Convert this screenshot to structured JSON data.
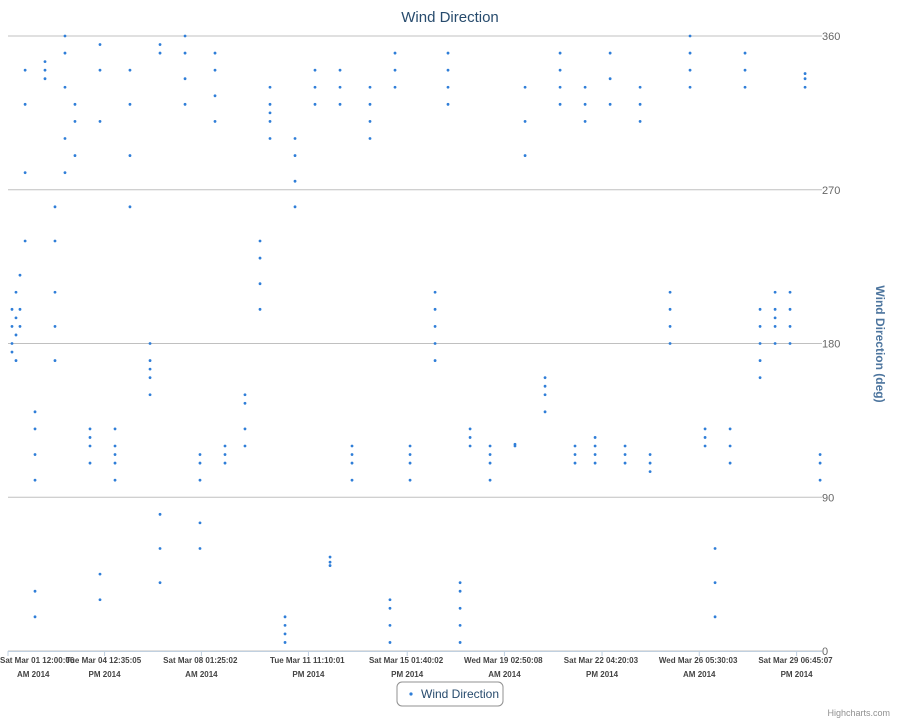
{
  "chart_data": {
    "type": "scatter",
    "title": "Wind Direction",
    "y_axis_title": "Wind Direction (deg)",
    "credit": "Highcharts.com",
    "grid": true,
    "legend": "bottom",
    "xlim": [
      "2014-03-01T00:00:06",
      "2014-03-30T17:00:00"
    ],
    "xticks": [
      {
        "value": "2014-03-01T00:00:06",
        "label": "Sat Mar 01 12:00:06 AM 2014"
      },
      {
        "value": "2014-03-04T12:35:05",
        "label": "Tue Mar 04 12:35:05 PM 2014"
      },
      {
        "value": "2014-03-08T01:25:02",
        "label": "Sat Mar 08 01:25:02 AM 2014"
      },
      {
        "value": "2014-03-11T23:10:01",
        "label": "Tue Mar 11 11:10:01 PM 2014"
      },
      {
        "value": "2014-03-15T13:40:02",
        "label": "Sat Mar 15 01:40:02 PM 2014"
      },
      {
        "value": "2014-03-19T02:50:08",
        "label": "Wed Mar 19 02:50:08 AM 2014"
      },
      {
        "value": "2014-03-22T16:20:03",
        "label": "Sat Mar 22 04:20:03 PM 2014"
      },
      {
        "value": "2014-03-26T05:30:03",
        "label": "Wed Mar 26 05:30:03 AM 2014"
      },
      {
        "value": "2014-03-29T18:45:07",
        "label": "Sat Mar 29 06:45:07 PM 2014"
      }
    ],
    "ylim": [
      0,
      360
    ],
    "yticks": [
      0,
      90,
      180,
      270,
      360
    ],
    "series": [
      {
        "name": "Wind Direction",
        "color": "#2f7ed8",
        "x": [
          "2014-03-01T03:30",
          "2014-03-01T03:30",
          "2014-03-01T03:30",
          "2014-03-01T03:30",
          "2014-03-01T07:00",
          "2014-03-01T07:00",
          "2014-03-01T07:00",
          "2014-03-01T07:00",
          "2014-03-01T10:30",
          "2014-03-01T10:30",
          "2014-03-01T10:30",
          "2014-03-01T15:00",
          "2014-03-01T15:00",
          "2014-03-01T15:00",
          "2014-03-01T15:00",
          "2014-03-01T23:40",
          "2014-03-01T23:40",
          "2014-03-01T23:40",
          "2014-03-01T23:40",
          "2014-03-01T23:40",
          "2014-03-01T23:40",
          "2014-03-02T08:25",
          "2014-03-02T08:25",
          "2014-03-02T08:25",
          "2014-03-02T17:10",
          "2014-03-02T17:10",
          "2014-03-02T17:10",
          "2014-03-02T17:10",
          "2014-03-02T17:10",
          "2014-03-03T01:55",
          "2014-03-03T01:55",
          "2014-03-03T01:55",
          "2014-03-03T01:55",
          "2014-03-03T01:55",
          "2014-03-03T10:40",
          "2014-03-03T10:40",
          "2014-03-03T10:40",
          "2014-03-03T23:50",
          "2014-03-03T23:50",
          "2014-03-03T23:50",
          "2014-03-03T23:50",
          "2014-03-04T08:35",
          "2014-03-04T08:35",
          "2014-03-04T08:35",
          "2014-03-04T08:35",
          "2014-03-04T08:35",
          "2014-03-04T21:45",
          "2014-03-04T21:45",
          "2014-03-04T21:45",
          "2014-03-04T21:45",
          "2014-03-04T21:45",
          "2014-03-05T10:50",
          "2014-03-05T10:50",
          "2014-03-05T10:50",
          "2014-03-05T10:50",
          "2014-03-06T04:25",
          "2014-03-06T04:25",
          "2014-03-06T04:25",
          "2014-03-06T04:25",
          "2014-03-06T04:25",
          "2014-03-06T13:10",
          "2014-03-06T13:10",
          "2014-03-06T13:10",
          "2014-03-06T13:10",
          "2014-03-06T13:10",
          "2014-03-07T11:05",
          "2014-03-07T11:05",
          "2014-03-07T11:05",
          "2014-03-07T11:05",
          "2014-03-08T00:10",
          "2014-03-08T00:10",
          "2014-03-08T00:10",
          "2014-03-08T00:10",
          "2014-03-08T00:10",
          "2014-03-08T13:20",
          "2014-03-08T13:20",
          "2014-03-08T13:20",
          "2014-03-08T13:20",
          "2014-03-08T22:05",
          "2014-03-08T22:05",
          "2014-03-08T22:05",
          "2014-03-09T15:35",
          "2014-03-09T15:35",
          "2014-03-09T15:35",
          "2014-03-09T15:35",
          "2014-03-10T04:45",
          "2014-03-10T04:45",
          "2014-03-10T04:45",
          "2014-03-10T04:45",
          "2014-03-10T13:30",
          "2014-03-10T13:30",
          "2014-03-10T13:30",
          "2014-03-10T13:30",
          "2014-03-10T13:30",
          "2014-03-11T02:40",
          "2014-03-11T02:40",
          "2014-03-11T02:40",
          "2014-03-11T02:40",
          "2014-03-11T11:25",
          "2014-03-11T11:25",
          "2014-03-11T11:25",
          "2014-03-11T11:25",
          "2014-03-12T04:55",
          "2014-03-12T04:55",
          "2014-03-12T04:55",
          "2014-03-12T18:05",
          "2014-03-12T18:05",
          "2014-03-12T18:05",
          "2014-03-13T02:50",
          "2014-03-13T02:50",
          "2014-03-13T02:50",
          "2014-03-13T13:20",
          "2014-03-13T13:20",
          "2014-03-13T13:20",
          "2014-03-13T13:20",
          "2014-03-14T05:05",
          "2014-03-14T05:05",
          "2014-03-14T05:05",
          "2014-03-14T05:05",
          "2014-03-14T22:35",
          "2014-03-14T22:35",
          "2014-03-14T22:35",
          "2014-03-14T22:35",
          "2014-03-15T03:00",
          "2014-03-15T03:00",
          "2014-03-15T03:00",
          "2014-03-15T16:10",
          "2014-03-15T16:10",
          "2014-03-15T16:10",
          "2014-03-15T16:10",
          "2014-03-16T14:05",
          "2014-03-16T14:05",
          "2014-03-16T14:05",
          "2014-03-16T14:05",
          "2014-03-16T14:05",
          "2014-03-17T01:25",
          "2014-03-17T01:25",
          "2014-03-17T01:25",
          "2014-03-17T01:25",
          "2014-03-17T12:00",
          "2014-03-17T12:00",
          "2014-03-17T12:00",
          "2014-03-17T12:00",
          "2014-03-17T12:00",
          "2014-03-17T20:45",
          "2014-03-17T20:45",
          "2014-03-17T20:45",
          "2014-03-18T14:15",
          "2014-03-18T14:15",
          "2014-03-18T14:15",
          "2014-03-18T14:15",
          "2014-03-19T12:05",
          "2014-03-19T12:05",
          "2014-03-19T20:55",
          "2014-03-19T20:55",
          "2014-03-19T20:55",
          "2014-03-20T14:25",
          "2014-03-20T14:25",
          "2014-03-20T14:25",
          "2014-03-20T14:25",
          "2014-03-21T03:35",
          "2014-03-21T03:35",
          "2014-03-21T03:35",
          "2014-03-21T03:35",
          "2014-03-21T16:40",
          "2014-03-21T16:40",
          "2014-03-21T16:40",
          "2014-03-22T01:30",
          "2014-03-22T01:30",
          "2014-03-22T01:30",
          "2014-03-22T10:15",
          "2014-03-22T10:15",
          "2014-03-22T10:15",
          "2014-03-22T10:15",
          "2014-03-22T23:25",
          "2014-03-22T23:25",
          "2014-03-22T23:25",
          "2014-03-23T12:30",
          "2014-03-23T12:30",
          "2014-03-23T12:30",
          "2014-03-24T01:40",
          "2014-03-24T01:40",
          "2014-03-24T01:40",
          "2014-03-24T10:25",
          "2014-03-24T10:25",
          "2014-03-24T10:25",
          "2014-03-25T03:55",
          "2014-03-25T03:55",
          "2014-03-25T03:55",
          "2014-03-25T03:55",
          "2014-03-25T21:25",
          "2014-03-25T21:25",
          "2014-03-25T21:25",
          "2014-03-25T21:25",
          "2014-03-26T10:35",
          "2014-03-26T10:35",
          "2014-03-26T10:35",
          "2014-03-26T19:20",
          "2014-03-26T19:20",
          "2014-03-26T19:20",
          "2014-03-27T08:30",
          "2014-03-27T08:30",
          "2014-03-27T08:30",
          "2014-03-27T21:35",
          "2014-03-27T21:35",
          "2014-03-27T21:35",
          "2014-03-28T10:45",
          "2014-03-28T10:45",
          "2014-03-28T10:45",
          "2014-03-28T10:45",
          "2014-03-28T10:45",
          "2014-03-28T23:55",
          "2014-03-28T23:55",
          "2014-03-28T23:55",
          "2014-03-28T23:55",
          "2014-03-28T23:55",
          "2014-03-29T13:00",
          "2014-03-29T13:00",
          "2014-03-29T13:00",
          "2014-03-29T13:00",
          "2014-03-30T02:10",
          "2014-03-30T02:10",
          "2014-03-30T02:10",
          "2014-03-30T15:20",
          "2014-03-30T15:20",
          "2014-03-30T15:20"
        ],
        "values": [
          180,
          190,
          200,
          175,
          185,
          195,
          210,
          170,
          200,
          220,
          190,
          240,
          280,
          320,
          340,
          100,
          115,
          130,
          140,
          20,
          35,
          335,
          340,
          345,
          190,
          210,
          240,
          260,
          170,
          280,
          300,
          330,
          350,
          360,
          290,
          310,
          320,
          110,
          120,
          125,
          130,
          310,
          340,
          355,
          30,
          45,
          100,
          110,
          115,
          120,
          130,
          260,
          290,
          320,
          340,
          150,
          160,
          165,
          170,
          180,
          40,
          60,
          80,
          350,
          355,
          320,
          335,
          350,
          360,
          100,
          110,
          115,
          60,
          75,
          310,
          325,
          340,
          350,
          110,
          115,
          120,
          120,
          130,
          145,
          150,
          200,
          215,
          230,
          240,
          300,
          310,
          320,
          330,
          315,
          5,
          10,
          15,
          20,
          260,
          275,
          290,
          300,
          320,
          330,
          340,
          50,
          52,
          55,
          320,
          330,
          340,
          100,
          110,
          115,
          120,
          300,
          310,
          320,
          330,
          5,
          15,
          25,
          30,
          330,
          340,
          350,
          100,
          110,
          115,
          120,
          170,
          180,
          190,
          200,
          210,
          320,
          330,
          340,
          350,
          5,
          15,
          25,
          35,
          40,
          120,
          125,
          130,
          100,
          110,
          115,
          120,
          120,
          121,
          290,
          310,
          330,
          140,
          150,
          155,
          160,
          320,
          330,
          340,
          350,
          110,
          115,
          120,
          310,
          320,
          330,
          110,
          115,
          120,
          125,
          320,
          335,
          350,
          110,
          115,
          120,
          310,
          320,
          330,
          105,
          110,
          115,
          180,
          190,
          200,
          210,
          330,
          340,
          350,
          360,
          120,
          125,
          130,
          20,
          40,
          60,
          110,
          120,
          130,
          330,
          340,
          350,
          160,
          170,
          180,
          190,
          200,
          180,
          190,
          195,
          200,
          210,
          180,
          190,
          200,
          210,
          330,
          335,
          338,
          100,
          110,
          115
        ]
      }
    ]
  }
}
